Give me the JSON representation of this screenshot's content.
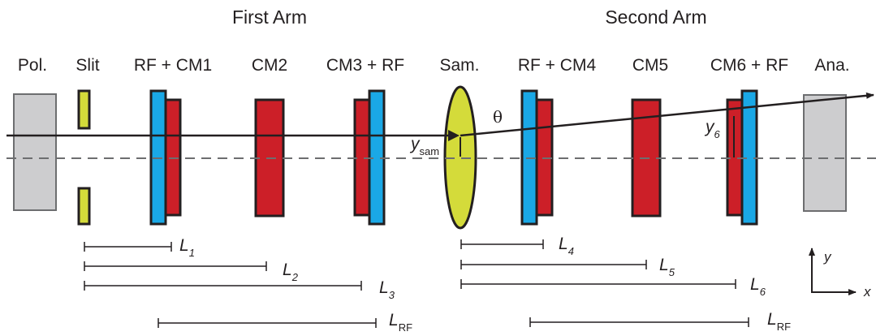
{
  "headings": {
    "first_arm": "First Arm",
    "second_arm": "Second Arm"
  },
  "components": {
    "pol": "Pol.",
    "slit": "Slit",
    "rf_cm1": "RF + CM1",
    "cm2": "CM2",
    "cm3_rf": "CM3 + RF",
    "sam": "Sam.",
    "rf_cm4": "RF + CM4",
    "cm5": "CM5",
    "cm6_rf": "CM6 + RF",
    "ana": "Ana."
  },
  "symbols": {
    "theta": "θ",
    "y_sam": {
      "main": "y",
      "sub": "sam"
    },
    "y_6": {
      "main": "y",
      "sub": "6"
    }
  },
  "lengths": {
    "L1": {
      "main": "L",
      "sub": "1"
    },
    "L2": {
      "main": "L",
      "sub": "2"
    },
    "L3": {
      "main": "L",
      "sub": "3"
    },
    "LRF_first": {
      "main": "L",
      "sub": "RF"
    },
    "L4": {
      "main": "L",
      "sub": "4"
    },
    "L5": {
      "main": "L",
      "sub": "5"
    },
    "L6": {
      "main": "L",
      "sub": "6"
    },
    "LRF_second": {
      "main": "L",
      "sub": "RF"
    }
  },
  "axes": {
    "x": "x",
    "y": "y"
  },
  "colors": {
    "grey": "#cdcdcf",
    "yellow": "#d4db3a",
    "blue": "#1aa8e6",
    "red": "#cc1f28",
    "outline": "#231f20",
    "dash": "#6d6e70"
  }
}
